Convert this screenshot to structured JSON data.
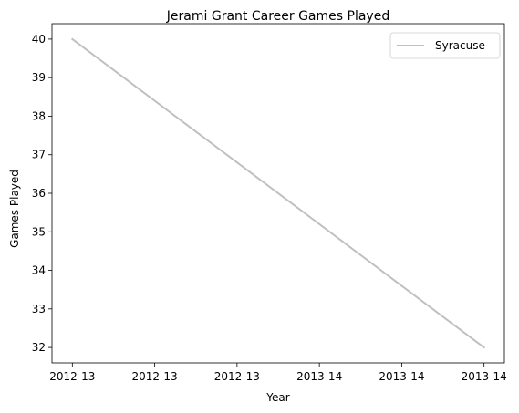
{
  "chart_data": {
    "type": "line",
    "title": "Jerami Grant Career Games Played",
    "xlabel": "Year",
    "ylabel": "Games Played",
    "x_tick_labels": [
      "2012-13",
      "2012-13",
      "2012-13",
      "2013-14",
      "2013-14",
      "2013-14"
    ],
    "y_ticks": [
      32,
      33,
      34,
      35,
      36,
      37,
      38,
      39,
      40
    ],
    "ylim": [
      31.6,
      40.4
    ],
    "series": [
      {
        "name": "Syracuse",
        "x": [
          0,
          1
        ],
        "values": [
          40,
          32
        ],
        "color": "#c0c0c0"
      }
    ],
    "legend_position": "top-right",
    "grid": false
  }
}
